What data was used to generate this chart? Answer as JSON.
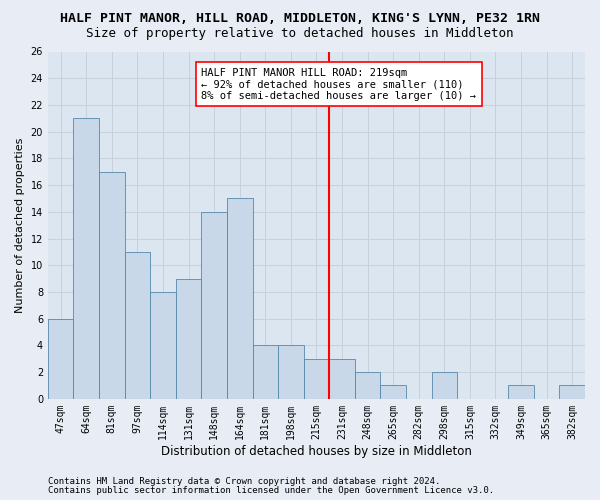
{
  "title1": "HALF PINT MANOR, HILL ROAD, MIDDLETON, KING'S LYNN, PE32 1RN",
  "title2": "Size of property relative to detached houses in Middleton",
  "xlabel": "Distribution of detached houses by size in Middleton",
  "ylabel": "Number of detached properties",
  "footnote1": "Contains HM Land Registry data © Crown copyright and database right 2024.",
  "footnote2": "Contains public sector information licensed under the Open Government Licence v3.0.",
  "bar_labels": [
    "47sqm",
    "64sqm",
    "81sqm",
    "97sqm",
    "114sqm",
    "131sqm",
    "148sqm",
    "164sqm",
    "181sqm",
    "198sqm",
    "215sqm",
    "231sqm",
    "248sqm",
    "265sqm",
    "282sqm",
    "298sqm",
    "315sqm",
    "332sqm",
    "349sqm",
    "365sqm",
    "382sqm"
  ],
  "bar_values": [
    6,
    21,
    17,
    11,
    8,
    9,
    14,
    15,
    4,
    4,
    3,
    3,
    2,
    1,
    0,
    2,
    0,
    0,
    1,
    0,
    1
  ],
  "bar_color": "#c8d8e8",
  "bar_edgecolor": "#5588aa",
  "vline_x": 10.5,
  "vline_color": "red",
  "ylim": [
    0,
    26
  ],
  "yticks": [
    0,
    2,
    4,
    6,
    8,
    10,
    12,
    14,
    16,
    18,
    20,
    22,
    24,
    26
  ],
  "annotation_title": "HALF PINT MANOR HILL ROAD: 219sqm",
  "annotation_line1": "← 92% of detached houses are smaller (110)",
  "annotation_line2": "8% of semi-detached houses are larger (10) →",
  "bg_color": "#e8edf5",
  "plot_bg_color": "#dce6f0",
  "grid_color": "#c8d0dc",
  "title1_fontsize": 9.5,
  "title2_fontsize": 9,
  "xlabel_fontsize": 8.5,
  "ylabel_fontsize": 8,
  "tick_fontsize": 7,
  "annotation_fontsize": 7.5,
  "footnote_fontsize": 6.5
}
